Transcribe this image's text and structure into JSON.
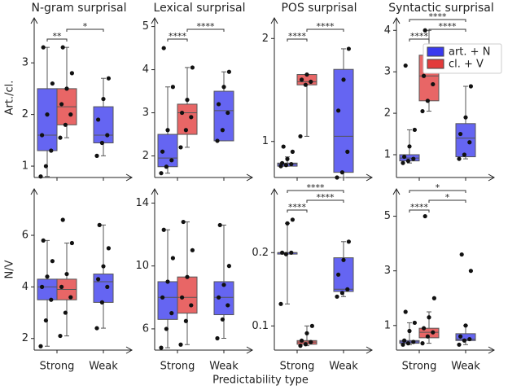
{
  "xlabel": "Predictability type",
  "categories": [
    "Strong",
    "Weak"
  ],
  "legend": {
    "position": "upper right",
    "entries": [
      {
        "name": "art. + N",
        "color": "#3a3aee"
      },
      {
        "name": "cl. + V",
        "color": "#e23b3b"
      }
    ]
  },
  "chart_data": [
    {
      "type": "box",
      "title": "N-gram surprisal",
      "ylabel": "Art./cl.",
      "ylim": [
        0.78,
        3.87
      ],
      "yticks": [
        1,
        2,
        3
      ],
      "series": [
        {
          "values": [
            {
              "whislo": 0.8,
              "q1": 1.3,
              "med": 1.6,
              "q3": 2.5,
              "whishi": 3.3,
              "points": [
                0.8,
                1.0,
                1.3,
                1.6,
                2.0,
                2.6,
                3.3
              ]
            },
            {
              "whislo": 1.2,
              "q1": 1.45,
              "med": 1.6,
              "q3": 2.15,
              "whishi": 2.7,
              "points": [
                1.2,
                1.45,
                1.6,
                1.9,
                2.3,
                2.7
              ]
            }
          ]
        },
        {
          "values": [
            {
              "whislo": 1.55,
              "q1": 1.8,
              "med": 2.15,
              "q3": 2.5,
              "whishi": 3.3,
              "points": [
                1.55,
                1.8,
                2.0,
                2.2,
                2.5,
                2.8,
                3.3
              ]
            },
            null
          ]
        }
      ],
      "brackets": [
        {
          "label": "**",
          "between": [
            0,
            1
          ]
        },
        {
          "label": "*",
          "between": [
            1,
            2
          ]
        }
      ]
    },
    {
      "type": "box",
      "title": "Lexical surprisal",
      "ylim": [
        1.5,
        5.2
      ],
      "yticks": [
        2,
        3,
        4,
        5
      ],
      "series": [
        {
          "values": [
            {
              "whislo": 1.6,
              "q1": 1.75,
              "med": 1.95,
              "q3": 2.5,
              "whishi": 3.6,
              "points": [
                1.6,
                1.75,
                1.9,
                2.1,
                2.6,
                3.6,
                4.5
              ]
            },
            {
              "whislo": 2.35,
              "q1": 2.35,
              "med": 3.05,
              "q3": 3.5,
              "whishi": 3.95,
              "points": [
                2.35,
                2.6,
                3.0,
                3.2,
                3.6,
                3.95
              ]
            }
          ]
        },
        {
          "values": [
            {
              "whislo": 2.2,
              "q1": 2.5,
              "med": 3.0,
              "q3": 3.2,
              "whishi": 4.05,
              "points": [
                2.2,
                2.6,
                2.9,
                3.0,
                3.3,
                4.05
              ]
            },
            null
          ]
        }
      ],
      "brackets": [
        {
          "label": "****",
          "between": [
            0,
            1
          ]
        },
        {
          "label": "****",
          "between": [
            1,
            2
          ]
        }
      ]
    },
    {
      "type": "box",
      "title": "POS surprisal",
      "ylim": [
        0.65,
        2.2
      ],
      "yticks": [
        1,
        2
      ],
      "series": [
        {
          "values": [
            {
              "whislo": 0.76,
              "q1": 0.76,
              "med": 0.78,
              "q3": 0.79,
              "whishi": 0.85,
              "points": [
                0.76,
                0.77,
                0.78,
                0.79,
                0.83,
                0.9,
                0.95
              ]
            },
            {
              "whislo": 0.65,
              "q1": 0.7,
              "med": 1.05,
              "q3": 1.7,
              "whishi": 1.9,
              "points": [
                0.65,
                0.7,
                0.9,
                1.3,
                1.6,
                1.9
              ]
            }
          ]
        },
        {
          "values": [
            {
              "whislo": 1.05,
              "q1": 1.55,
              "med": 1.58,
              "q3": 1.65,
              "whishi": 1.65,
              "points": [
                1.05,
                1.55,
                1.58,
                1.6,
                1.65
              ]
            },
            null
          ]
        }
      ],
      "brackets": [
        {
          "label": "****",
          "between": [
            0,
            1
          ]
        },
        {
          "label": "****",
          "between": [
            1,
            2
          ]
        }
      ]
    },
    {
      "type": "box",
      "title": "Syntactic surprisal",
      "ylim": [
        0.45,
        4.3
      ],
      "yticks": [
        1,
        2,
        3,
        4
      ],
      "series": [
        {
          "values": [
            {
              "whislo": 0.8,
              "q1": 0.85,
              "med": 0.92,
              "q3": 1.0,
              "whishi": 1.6,
              "points": [
                0.8,
                0.85,
                0.9,
                0.95,
                1.2,
                1.6,
                3.15
              ]
            },
            {
              "whislo": 0.9,
              "q1": 0.95,
              "med": 1.4,
              "q3": 1.75,
              "whishi": 2.65,
              "points": [
                0.9,
                1.0,
                1.3,
                1.5,
                1.9,
                2.65
              ]
            }
          ]
        },
        {
          "values": [
            {
              "whislo": 2.05,
              "q1": 2.3,
              "med": 2.9,
              "q3": 3.4,
              "whishi": 4.0,
              "points": [
                2.05,
                2.3,
                2.7,
                2.9,
                3.2,
                3.6,
                4.0
              ]
            },
            null
          ]
        }
      ],
      "brackets": [
        {
          "label": "****",
          "between": [
            0,
            1
          ]
        },
        {
          "label": "****",
          "between": [
            1,
            2
          ]
        },
        {
          "label": "****",
          "between": [
            0,
            2
          ]
        }
      ]
    },
    {
      "type": "box",
      "ylabel": "N/V",
      "ylim": [
        1.55,
        7.8
      ],
      "yticks": [
        2,
        4,
        6
      ],
      "series": [
        {
          "values": [
            {
              "whislo": 1.7,
              "q1": 3.5,
              "med": 4.0,
              "q3": 4.3,
              "whishi": 5.8,
              "points": [
                1.7,
                2.7,
                3.5,
                4.0,
                4.4,
                5.0,
                5.8
              ]
            },
            {
              "whislo": 2.4,
              "q1": 3.4,
              "med": 4.2,
              "q3": 4.5,
              "whishi": 6.4,
              "points": [
                2.4,
                3.4,
                4.0,
                4.3,
                4.8,
                5.5,
                6.4
              ]
            }
          ]
        },
        {
          "values": [
            {
              "whislo": 2.1,
              "q1": 3.5,
              "med": 3.9,
              "q3": 4.3,
              "whishi": 5.7,
              "points": [
                2.1,
                3.0,
                3.6,
                4.0,
                4.5,
                5.7,
                6.6
              ]
            },
            null
          ]
        }
      ],
      "brackets": []
    },
    {
      "type": "box",
      "ylim": [
        4.65,
        14.9
      ],
      "yticks": [
        6,
        10,
        14
      ],
      "series": [
        {
          "values": [
            {
              "whislo": 4.8,
              "q1": 6.6,
              "med": 8.0,
              "q3": 9.0,
              "whishi": 12.3,
              "points": [
                4.8,
                6.0,
                7.0,
                8.0,
                9.0,
                10.5,
                12.3
              ]
            },
            {
              "whislo": 5.4,
              "q1": 6.9,
              "med": 8.0,
              "q3": 9.0,
              "whishi": 12.6,
              "points": [
                5.4,
                6.6,
                7.5,
                8.0,
                8.8,
                10.0,
                12.6
              ]
            }
          ]
        },
        {
          "values": [
            {
              "whislo": 5.0,
              "q1": 7.0,
              "med": 8.0,
              "q3": 9.3,
              "whishi": 12.8,
              "points": [
                5.0,
                6.5,
                7.5,
                8.0,
                9.3,
                11.0,
                12.8
              ]
            },
            null
          ]
        }
      ],
      "brackets": []
    },
    {
      "type": "box",
      "ylim": [
        0.067,
        0.287
      ],
      "yticks": [
        0.1,
        0.2
      ],
      "series": [
        {
          "values": [
            {
              "whislo": 0.13,
              "q1": 0.198,
              "med": 0.2,
              "q3": 0.2,
              "whishi": 0.24,
              "points": [
                0.13,
                0.198,
                0.2,
                0.2,
                0.24,
                0.245
              ]
            },
            {
              "whislo": 0.14,
              "q1": 0.147,
              "med": 0.15,
              "q3": 0.193,
              "whishi": 0.215,
              "points": [
                0.14,
                0.145,
                0.15,
                0.17,
                0.19,
                0.215
              ]
            }
          ]
        },
        {
          "values": [
            {
              "whislo": 0.073,
              "q1": 0.075,
              "med": 0.078,
              "q3": 0.08,
              "whishi": 0.1,
              "points": [
                0.073,
                0.075,
                0.078,
                0.08,
                0.09,
                0.1
              ]
            },
            null
          ]
        }
      ],
      "brackets": [
        {
          "label": "****",
          "between": [
            0,
            1
          ]
        },
        {
          "label": "****",
          "between": [
            1,
            2
          ]
        },
        {
          "label": "****",
          "between": [
            0,
            2
          ]
        }
      ]
    },
    {
      "type": "box",
      "ylim": [
        0.1,
        6.0
      ],
      "yticks": [
        1,
        3,
        5
      ],
      "series": [
        {
          "values": [
            {
              "whislo": 0.3,
              "q1": 0.35,
              "med": 0.4,
              "q3": 0.45,
              "whishi": 1.1,
              "points": [
                0.3,
                0.35,
                0.4,
                0.45,
                0.8,
                1.1,
                1.5
              ]
            },
            {
              "whislo": 0.3,
              "q1": 0.45,
              "med": 0.5,
              "q3": 0.7,
              "whishi": 1.0,
              "points": [
                0.3,
                0.45,
                0.5,
                0.6,
                1.0,
                3.0,
                3.6
              ]
            }
          ]
        },
        {
          "values": [
            {
              "whislo": 0.35,
              "q1": 0.55,
              "med": 0.75,
              "q3": 0.9,
              "whishi": 1.5,
              "points": [
                0.35,
                0.6,
                0.75,
                0.9,
                1.3,
                2.0,
                5.0
              ]
            },
            null
          ]
        }
      ],
      "brackets": [
        {
          "label": "****",
          "between": [
            0,
            1
          ]
        },
        {
          "label": "*",
          "between": [
            1,
            2
          ]
        },
        {
          "label": "*",
          "between": [
            0,
            2
          ]
        }
      ]
    }
  ]
}
